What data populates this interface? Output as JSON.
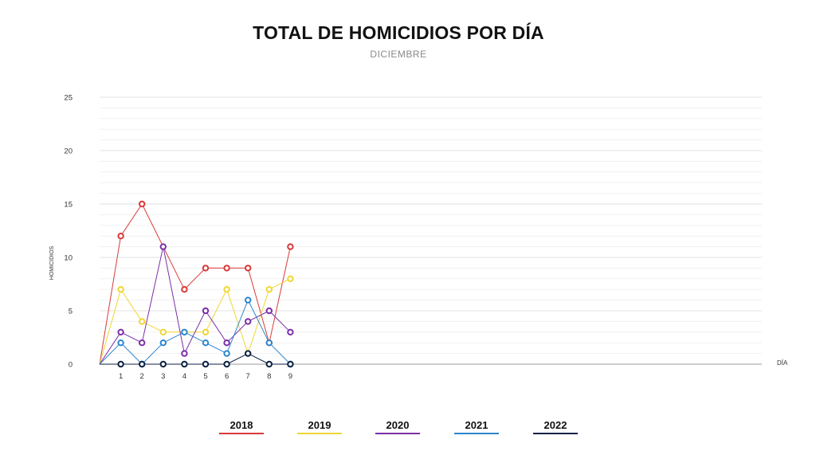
{
  "chart_data": {
    "type": "line",
    "title": "TOTAL DE HOMICIDIOS POR DÍA",
    "subtitle": "DICIEMBRE",
    "ylabel": "HOMICIDIOS",
    "xlabel": "DÍA",
    "ylim": [
      0,
      25
    ],
    "yticks": [
      0,
      5,
      10,
      15,
      20,
      25
    ],
    "x": [
      0,
      1,
      2,
      3,
      4,
      5,
      6,
      7,
      8,
      9
    ],
    "xtick_labels": [
      "1",
      "2",
      "3",
      "4",
      "5",
      "6",
      "7",
      "8",
      "9"
    ],
    "grid": true,
    "legend_position": "bottom",
    "series": [
      {
        "name": "2018",
        "color": "#d93a3a",
        "values": [
          0,
          12,
          15,
          null,
          7,
          9,
          9,
          9,
          2,
          11
        ]
      },
      {
        "name": "2019",
        "color": "#f0d632",
        "values": [
          0,
          7,
          4,
          3,
          3,
          3,
          7,
          1,
          7,
          8
        ]
      },
      {
        "name": "2020",
        "color": "#7b2fa8",
        "values": [
          0,
          3,
          2,
          11,
          1,
          5,
          2,
          4,
          5,
          3
        ]
      },
      {
        "name": "2021",
        "color": "#2c86cf",
        "values": [
          0,
          2,
          0,
          2,
          3,
          2,
          1,
          6,
          2,
          0
        ]
      },
      {
        "name": "2022",
        "color": "#0e2244",
        "values": [
          0,
          0,
          0,
          0,
          0,
          0,
          0,
          1,
          0,
          0
        ]
      }
    ]
  }
}
